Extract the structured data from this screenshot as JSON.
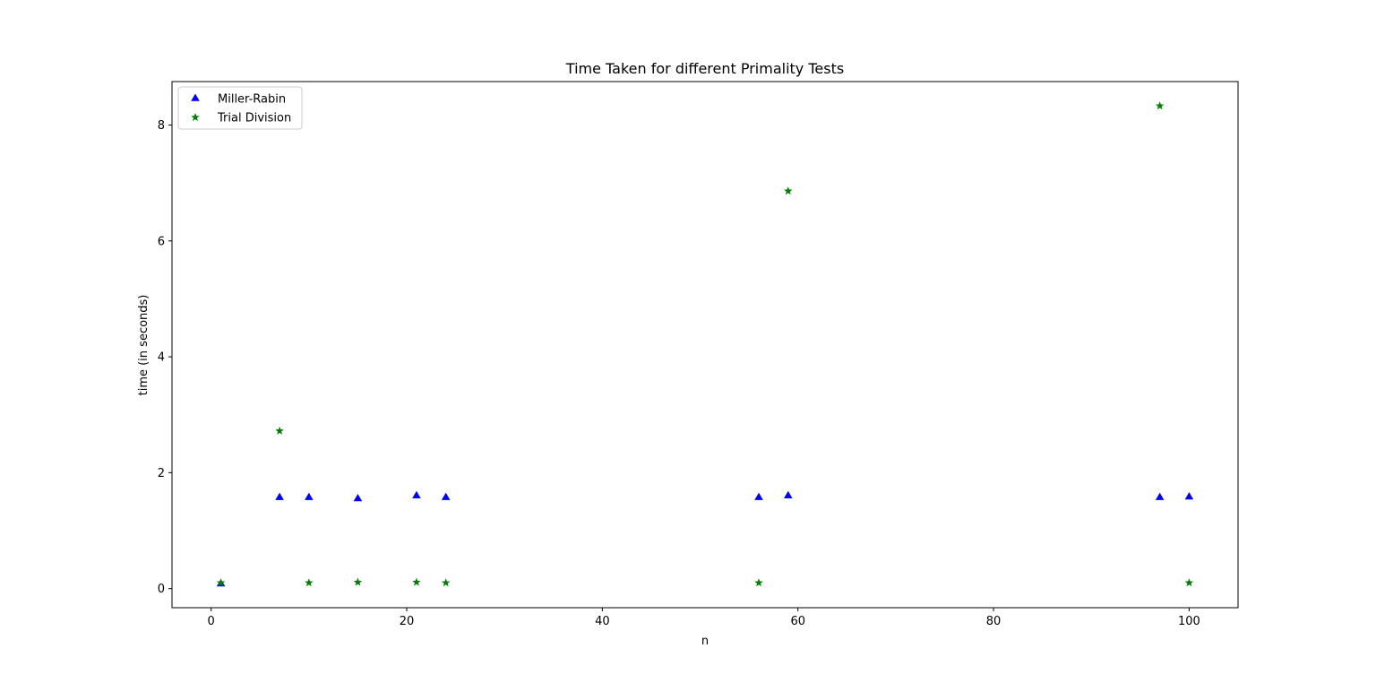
{
  "chart_data": {
    "type": "scatter",
    "title": "Time Taken for different Primality Tests",
    "xlabel": "n",
    "ylabel": "time (in seconds)",
    "xlim": [
      -4,
      105
    ],
    "ylim": [
      -0.33,
      8.75
    ],
    "xticks": [
      0,
      20,
      40,
      60,
      80,
      100
    ],
    "yticks": [
      0,
      2,
      4,
      6,
      8
    ],
    "grid": false,
    "legend_position": "upper-left",
    "series": [
      {
        "name": "Miller-Rabin",
        "marker": "triangle",
        "color": "#0000ff",
        "points": [
          {
            "x": 1,
            "y": 0.08
          },
          {
            "x": 7,
            "y": 1.57
          },
          {
            "x": 10,
            "y": 1.57
          },
          {
            "x": 15,
            "y": 1.55
          },
          {
            "x": 21,
            "y": 1.6
          },
          {
            "x": 24,
            "y": 1.57
          },
          {
            "x": 56,
            "y": 1.57
          },
          {
            "x": 59,
            "y": 1.6
          },
          {
            "x": 97,
            "y": 1.57
          },
          {
            "x": 100,
            "y": 1.58
          }
        ]
      },
      {
        "name": "Trial Division",
        "marker": "star",
        "color": "#008000",
        "points": [
          {
            "x": 1,
            "y": 0.1
          },
          {
            "x": 7,
            "y": 2.72
          },
          {
            "x": 10,
            "y": 0.1
          },
          {
            "x": 15,
            "y": 0.11
          },
          {
            "x": 21,
            "y": 0.11
          },
          {
            "x": 24,
            "y": 0.1
          },
          {
            "x": 56,
            "y": 0.1
          },
          {
            "x": 59,
            "y": 6.86
          },
          {
            "x": 97,
            "y": 8.33
          },
          {
            "x": 100,
            "y": 0.1
          }
        ]
      }
    ]
  }
}
